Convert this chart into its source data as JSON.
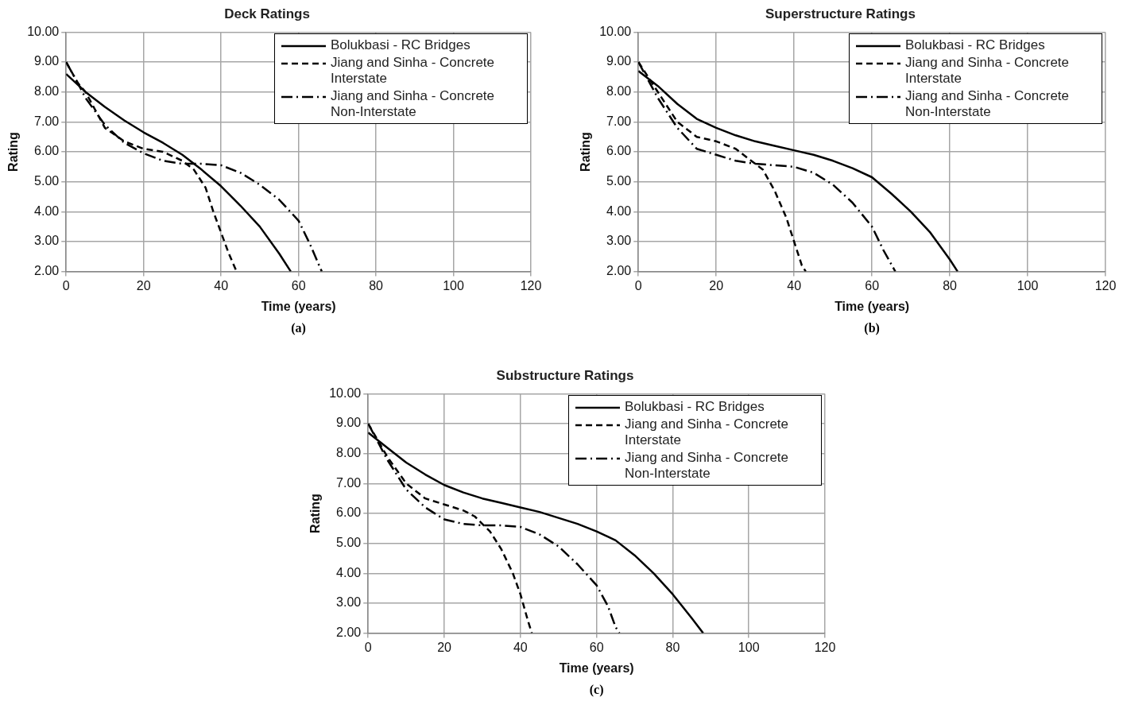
{
  "chart_data": [
    {
      "type": "line",
      "title": "Deck Ratings",
      "xlabel": "Time (years)",
      "ylabel": "Rating",
      "annotations": [
        "(a)"
      ],
      "legend": "top right",
      "grid": true,
      "marker": "none",
      "xlim": [
        0,
        120
      ],
      "xticks": [
        0,
        20,
        40,
        60,
        80,
        100,
        120
      ],
      "ylim": [
        2,
        10
      ],
      "yticks": [
        {
          "value": 2,
          "label": "2.00"
        },
        {
          "value": 3,
          "label": "3.00"
        },
        {
          "value": 4,
          "label": "4.00"
        },
        {
          "value": 5,
          "label": "5.00"
        },
        {
          "value": 6,
          "label": "6.00"
        },
        {
          "value": 7,
          "label": "7.00"
        },
        {
          "value": 8,
          "label": "8.00"
        },
        {
          "value": 9,
          "label": "9.00"
        },
        {
          "value": 10,
          "label": "10.00"
        }
      ],
      "series": [
        {
          "name": "Bolukbasi - RC Bridges",
          "color": "#000000",
          "line_style": "solid",
          "x": [
            0,
            5,
            10,
            15,
            20,
            25,
            30,
            35,
            40,
            45,
            50,
            55,
            58
          ],
          "values": [
            8.6,
            8.0,
            7.5,
            7.05,
            6.65,
            6.3,
            5.9,
            5.4,
            4.85,
            4.2,
            3.5,
            2.6,
            2.0
          ]
        },
        {
          "name": "Jiang and Sinha - Concrete Interstate",
          "color": "#000000",
          "line_style": "dashed",
          "x": [
            0,
            3,
            5,
            10,
            15,
            20,
            25,
            30,
            33,
            36,
            38,
            40,
            42,
            44
          ],
          "values": [
            9.0,
            8.3,
            8.0,
            6.8,
            6.35,
            6.1,
            6.0,
            5.7,
            5.4,
            4.8,
            4.0,
            3.3,
            2.6,
            2.0
          ]
        },
        {
          "name": "Jiang and Sinha - Concrete Non-Interstate",
          "color": "#000000",
          "line_style": "dashdot",
          "x": [
            0,
            3,
            5,
            10,
            15,
            20,
            25,
            30,
            35,
            40,
            45,
            50,
            55,
            60,
            63,
            66
          ],
          "values": [
            9.0,
            8.3,
            7.8,
            6.9,
            6.3,
            5.95,
            5.7,
            5.6,
            5.6,
            5.55,
            5.3,
            4.9,
            4.4,
            3.7,
            2.9,
            2.0
          ]
        }
      ]
    },
    {
      "type": "line",
      "title": "Superstructure Ratings",
      "xlabel": "Time (years)",
      "ylabel": "Rating",
      "annotations": [
        "(b)"
      ],
      "legend": "top right",
      "grid": true,
      "marker": "none",
      "xlim": [
        0,
        120
      ],
      "xticks": [
        0,
        20,
        40,
        60,
        80,
        100,
        120
      ],
      "ylim": [
        2,
        10
      ],
      "yticks": [
        {
          "value": 2,
          "label": "2.00"
        },
        {
          "value": 3,
          "label": "3.00"
        },
        {
          "value": 4,
          "label": "4.00"
        },
        {
          "value": 5,
          "label": "5.00"
        },
        {
          "value": 6,
          "label": "6.00"
        },
        {
          "value": 7,
          "label": "7.00"
        },
        {
          "value": 8,
          "label": "8.00"
        },
        {
          "value": 9,
          "label": "9.00"
        },
        {
          "value": 10,
          "label": "10.00"
        }
      ],
      "series": [
        {
          "name": "Bolukbasi - RC Bridges",
          "color": "#000000",
          "line_style": "solid",
          "x": [
            0,
            5,
            10,
            15,
            20,
            25,
            30,
            35,
            40,
            45,
            50,
            55,
            60,
            65,
            70,
            75,
            80,
            82
          ],
          "values": [
            8.7,
            8.2,
            7.6,
            7.1,
            6.8,
            6.55,
            6.35,
            6.2,
            6.05,
            5.9,
            5.7,
            5.45,
            5.15,
            4.6,
            4.0,
            3.3,
            2.4,
            2.0
          ]
        },
        {
          "name": "Jiang and Sinha - Concrete Interstate",
          "color": "#000000",
          "line_style": "dashed",
          "x": [
            0,
            5,
            10,
            15,
            20,
            25,
            28,
            32,
            35,
            38,
            40,
            42,
            43
          ],
          "values": [
            9.0,
            8.0,
            7.0,
            6.5,
            6.35,
            6.1,
            5.8,
            5.4,
            4.7,
            3.8,
            3.0,
            2.2,
            2.0
          ]
        },
        {
          "name": "Jiang and Sinha - Concrete Non-Interstate",
          "color": "#000000",
          "line_style": "dashdot",
          "x": [
            0,
            5,
            10,
            15,
            20,
            25,
            30,
            35,
            40,
            45,
            50,
            55,
            60,
            63,
            66
          ],
          "values": [
            9.0,
            7.8,
            6.8,
            6.1,
            5.9,
            5.7,
            5.6,
            5.55,
            5.5,
            5.3,
            4.9,
            4.3,
            3.5,
            2.7,
            2.0
          ]
        }
      ]
    },
    {
      "type": "line",
      "title": "Substructure Ratings",
      "xlabel": "Time (years)",
      "ylabel": "Rating",
      "annotations": [
        "(c)"
      ],
      "legend": "top right",
      "grid": true,
      "marker": "none",
      "xlim": [
        0,
        120
      ],
      "xticks": [
        0,
        20,
        40,
        60,
        80,
        100,
        120
      ],
      "ylim": [
        2,
        10
      ],
      "yticks": [
        {
          "value": 2,
          "label": "2.00"
        },
        {
          "value": 3,
          "label": "3.00"
        },
        {
          "value": 4,
          "label": "4.00"
        },
        {
          "value": 5,
          "label": "5.00"
        },
        {
          "value": 6,
          "label": "6.00"
        },
        {
          "value": 7,
          "label": "7.00"
        },
        {
          "value": 8,
          "label": "8.00"
        },
        {
          "value": 9,
          "label": "9.00"
        },
        {
          "value": 10,
          "label": "10.00"
        }
      ],
      "series": [
        {
          "name": "Bolukbasi - RC Bridges",
          "color": "#000000",
          "line_style": "solid",
          "x": [
            0,
            5,
            10,
            15,
            20,
            25,
            30,
            35,
            40,
            45,
            50,
            55,
            60,
            65,
            70,
            75,
            80,
            85,
            88
          ],
          "values": [
            8.7,
            8.2,
            7.7,
            7.3,
            6.95,
            6.7,
            6.5,
            6.35,
            6.2,
            6.05,
            5.85,
            5.65,
            5.4,
            5.1,
            4.6,
            4.0,
            3.3,
            2.5,
            2.0
          ]
        },
        {
          "name": "Jiang and Sinha - Concrete Interstate",
          "color": "#000000",
          "line_style": "dashed",
          "x": [
            0,
            5,
            10,
            15,
            20,
            25,
            28,
            32,
            35,
            38,
            40,
            42,
            43
          ],
          "values": [
            9.0,
            7.9,
            7.0,
            6.5,
            6.3,
            6.1,
            5.9,
            5.4,
            4.8,
            4.0,
            3.3,
            2.4,
            2.0
          ]
        },
        {
          "name": "Jiang and Sinha - Concrete Non-Interstate",
          "color": "#000000",
          "line_style": "dashdot",
          "x": [
            0,
            5,
            10,
            15,
            20,
            25,
            30,
            35,
            40,
            45,
            50,
            55,
            60,
            63,
            65,
            66
          ],
          "values": [
            9.0,
            7.8,
            6.8,
            6.2,
            5.8,
            5.65,
            5.6,
            5.6,
            5.55,
            5.3,
            4.9,
            4.3,
            3.6,
            2.9,
            2.2,
            2.0
          ]
        }
      ]
    }
  ]
}
